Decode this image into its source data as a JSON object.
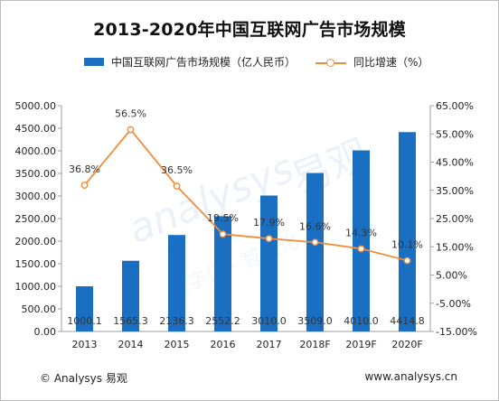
{
  "chart_data": {
    "type": "bar",
    "title": "2013-2020年中国互联网广告市场规模",
    "categories": [
      "2013",
      "2014",
      "2015",
      "2016",
      "2017",
      "2018F",
      "2019F",
      "2020F"
    ],
    "series": [
      {
        "name": "中国互联网广告市场规模（亿人民币）",
        "type": "bar",
        "axis": "left",
        "values": [
          1000.1,
          1565.3,
          2136.3,
          2552.2,
          3010.0,
          3509.0,
          4010.0,
          4414.8
        ],
        "labels": [
          "1000.1",
          "1565.3",
          "2136.3",
          "2552.2",
          "3010.0",
          "3509.0",
          "4010.0",
          "4414.8"
        ]
      },
      {
        "name": "同比增速（%）",
        "type": "line",
        "axis": "right",
        "values": [
          36.8,
          56.5,
          36.5,
          19.5,
          17.9,
          16.6,
          14.3,
          10.1
        ],
        "labels": [
          "36.8%",
          "56.5%",
          "36.5%",
          "19.5%",
          "17.9%",
          "16.6%",
          "14.3%",
          "10.1%"
        ]
      }
    ],
    "ylim_left": [
      0,
      5000
    ],
    "ylim_right": [
      -15,
      65
    ],
    "yticks_left": [
      "0.00",
      "500.00",
      "1000.00",
      "1500.00",
      "2000.00",
      "2500.00",
      "3000.00",
      "3500.00",
      "4000.00",
      "4500.00",
      "5000.00"
    ],
    "yticks_right": [
      "-15.00%",
      "-5.00%",
      "5.00%",
      "15.00%",
      "25.00%",
      "35.00%",
      "45.00%",
      "55.00%",
      "65.00%"
    ],
    "legend_position": "top",
    "grid": false,
    "colors": {
      "bar": "#1b6fc2",
      "line": "#f28c3a",
      "watermark": "#cfe0f2"
    }
  },
  "footer": {
    "copyright": "© Analysys 易观",
    "website": "www.analysys.cn"
  }
}
